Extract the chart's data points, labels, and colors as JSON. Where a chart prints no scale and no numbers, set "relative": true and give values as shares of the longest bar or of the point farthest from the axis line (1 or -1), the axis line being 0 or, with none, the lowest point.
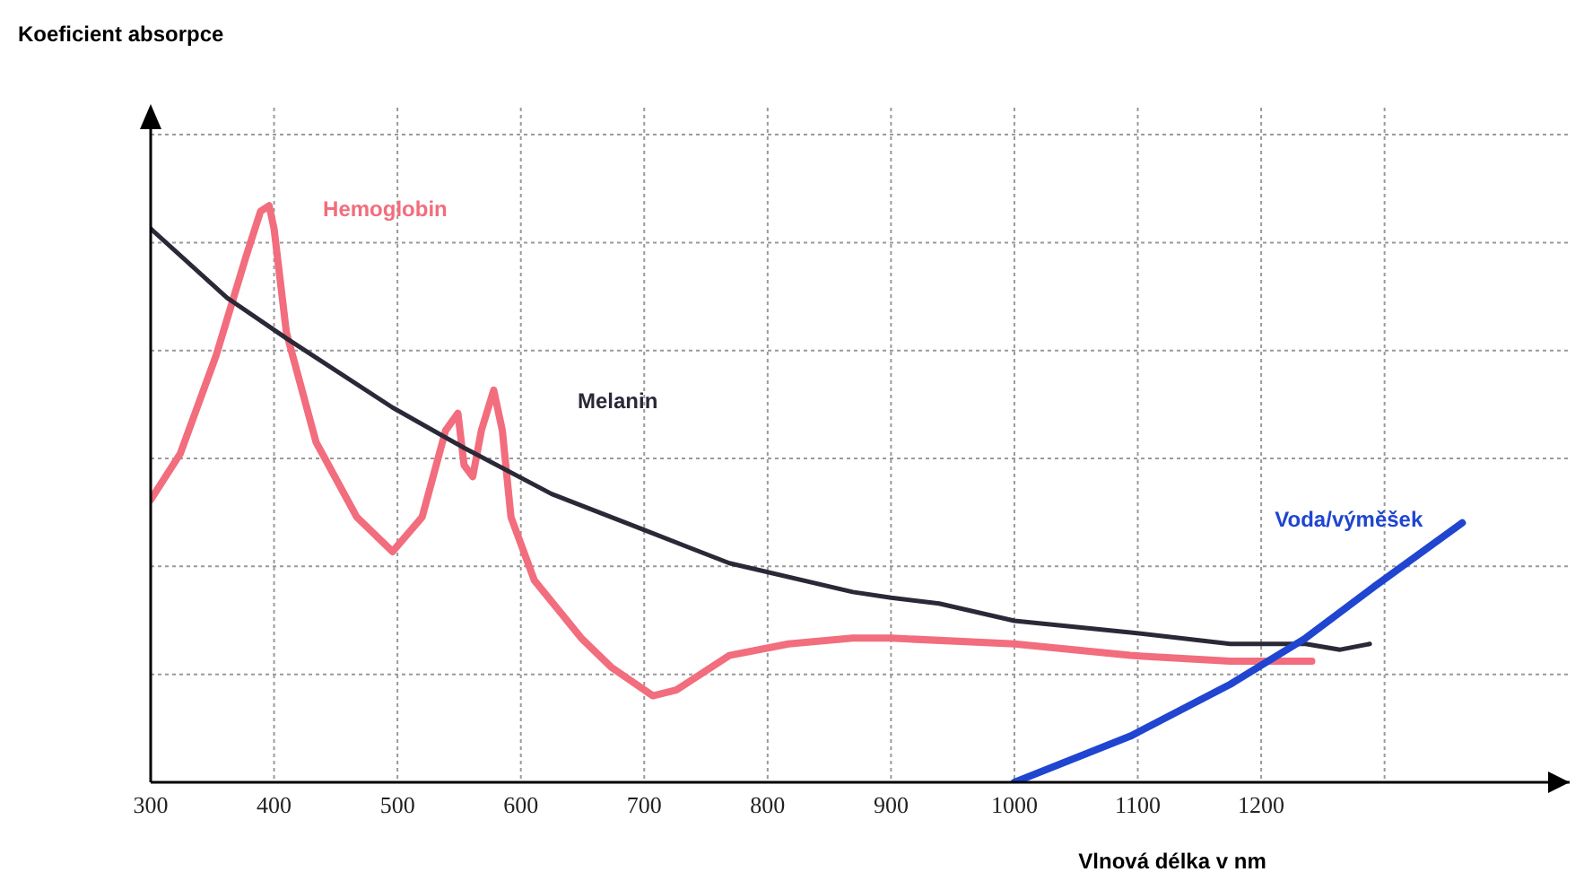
{
  "chart_data": {
    "type": "line",
    "relative": true,
    "annotations": [
      "Koeficient absorpce"
    ],
    "xlabel": "Vlnová délka v nm",
    "xlim": [
      300,
      1450
    ],
    "xticks": [
      300,
      400,
      500,
      600,
      700,
      800,
      900,
      1000,
      1100,
      1200,
      {
        "value": 1300,
        "label": null
      }
    ],
    "grid": true,
    "legend": false,
    "marker": "none",
    "line_style": "solid",
    "series": [
      {
        "name": "Hemoglobin",
        "color": "#f26d7d",
        "x": [
          300,
          324,
          353,
          377,
          389,
          396,
          400,
          410,
          434,
          467,
          496,
          520,
          539,
          549,
          554,
          561,
          568,
          578,
          585,
          592,
          611,
          649,
          673,
          707,
          726,
          769,
          817,
          869,
          900,
          1000,
          1094,
          1175,
          1241
        ],
        "values": [
          0.49,
          0.57,
          0.74,
          0.91,
          0.99,
          1.0,
          0.96,
          0.78,
          0.59,
          0.46,
          0.4,
          0.46,
          0.61,
          0.64,
          0.55,
          0.53,
          0.61,
          0.68,
          0.61,
          0.46,
          0.35,
          0.25,
          0.2,
          0.15,
          0.16,
          0.22,
          0.24,
          0.25,
          0.25,
          0.24,
          0.22,
          0.21,
          0.21
        ]
      },
      {
        "name": "Melanin",
        "color": "#2b2838",
        "x": [
          300,
          362,
          410,
          496,
          554,
          625,
          697,
          769,
          869,
          900,
          939,
          1000,
          1094,
          1175,
          1236,
          1264,
          1288
        ],
        "values": [
          0.96,
          0.84,
          0.77,
          0.65,
          0.58,
          0.5,
          0.44,
          0.38,
          0.33,
          0.32,
          0.31,
          0.28,
          0.26,
          0.24,
          0.24,
          0.23,
          0.24
        ]
      },
      {
        "name": "Voda/výměšek",
        "color": "#1f45d1",
        "x": [
          1000,
          1094,
          1175,
          1236,
          1292,
          1363
        ],
        "values": [
          0.0,
          0.08,
          0.17,
          0.25,
          0.34,
          0.45
        ]
      }
    ]
  }
}
